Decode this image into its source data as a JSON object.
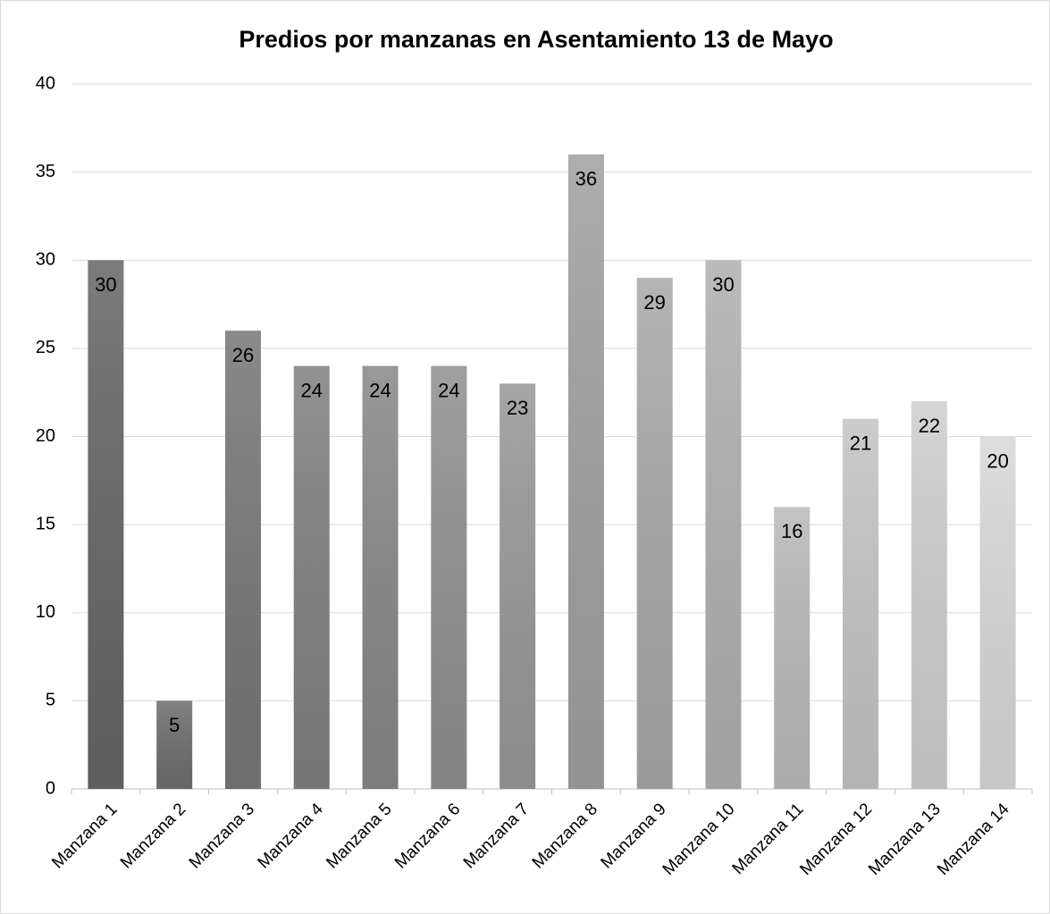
{
  "chart_data": {
    "type": "bar",
    "title": "Predios por manzanas en Asentamiento 13 de Mayo",
    "categories": [
      "Manzana 1",
      "Manzana 2",
      "Manzana 3",
      "Manzana 4",
      "Manzana 5",
      "Manzana 6",
      "Manzana 7",
      "Manzana 8",
      "Manzana 9",
      "Manzana 10",
      "Manzana 11",
      "Manzana 12",
      "Manzana 13",
      "Manzana 14"
    ],
    "values": [
      30,
      5,
      26,
      24,
      24,
      24,
      23,
      36,
      29,
      30,
      16,
      21,
      22,
      20
    ],
    "colors": [
      "#666666",
      "#6e6e6e",
      "#777777",
      "#808080",
      "#888888",
      "#909090",
      "#989898",
      "#a0a0a0",
      "#a8a8a8",
      "#b0b0b0",
      "#b9b9b9",
      "#c4c4c4",
      "#cecece",
      "#d8d8d8"
    ],
    "ylim": [
      0,
      40
    ],
    "yticks": [
      0,
      5,
      10,
      15,
      20,
      25,
      30,
      35,
      40
    ],
    "grid": true
  }
}
